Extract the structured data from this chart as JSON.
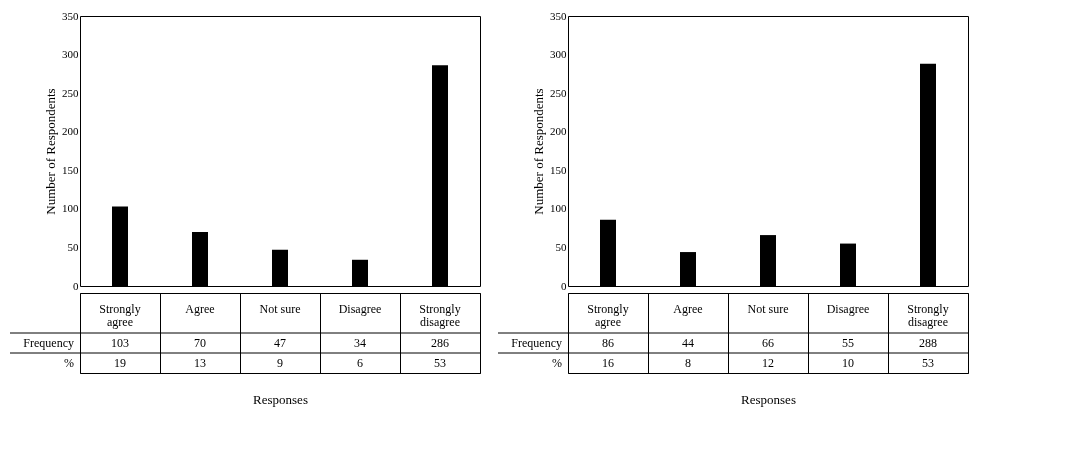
{
  "chart_data": [
    {
      "type": "bar",
      "xlabel": "Responses",
      "ylabel": "Number of Respondents",
      "categories": [
        "Strongly agree",
        "Agree",
        "Not sure",
        "Disagree",
        "Strongly disagree"
      ],
      "values": [
        103,
        70,
        47,
        34,
        286
      ],
      "color": "#000000",
      "ylim": [
        0,
        350
      ],
      "yticks": [
        0,
        50,
        100,
        150,
        200,
        250,
        300,
        350
      ],
      "data_labels": true,
      "annotations": [
        "Frequency",
        "%",
        "19",
        "13",
        "9",
        "6",
        "53"
      ]
    },
    {
      "type": "bar",
      "xlabel": "Responses",
      "ylabel": "Number of Respondents",
      "categories": [
        "Strongly agree",
        "Agree",
        "Not sure",
        "Disagree",
        "Strongly disagree"
      ],
      "values": [
        86,
        44,
        66,
        55,
        288
      ],
      "color": "#000000",
      "ylim": [
        0,
        350
      ],
      "yticks": [
        0,
        50,
        100,
        150,
        200,
        250,
        300,
        350
      ],
      "data_labels": true,
      "annotations": [
        "Frequency",
        "%",
        "16",
        "8",
        "12",
        "10",
        "53"
      ]
    }
  ]
}
